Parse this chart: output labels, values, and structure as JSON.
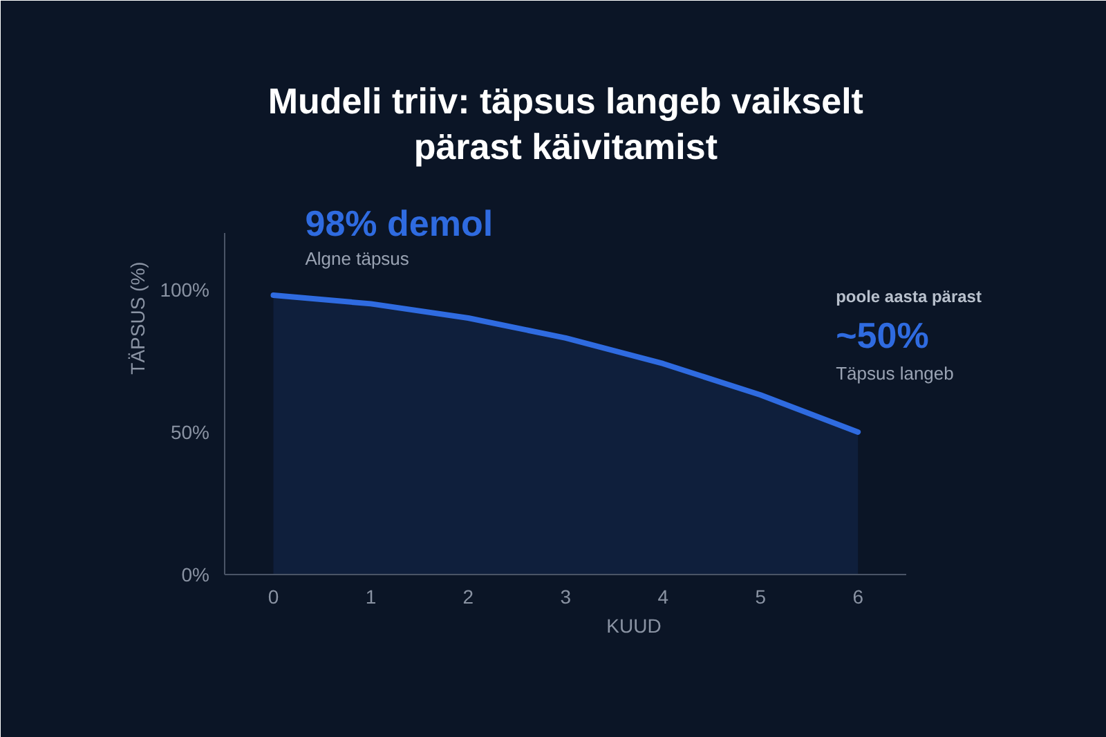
{
  "chart_data": {
    "type": "area",
    "title": "Mudeli triiv: täpsus langeb vaikselt\npärast käivitamist",
    "xlabel": "KUUD",
    "ylabel": "TÄPSUS (%)",
    "x": [
      0,
      1,
      2,
      3,
      4,
      5,
      6
    ],
    "series": [
      {
        "color": "#2f6be0",
        "values": [
          98,
          95,
          90,
          83,
          74,
          63,
          50
        ]
      }
    ],
    "xlim": [
      -0.5,
      6.5
    ],
    "ylim": [
      0,
      120
    ],
    "xticks": [
      0,
      1,
      2,
      3,
      4,
      5,
      6
    ],
    "yticks": [
      {
        "value": 0,
        "label": "0%"
      },
      {
        "value": 50,
        "label": "50%"
      },
      {
        "value": 100,
        "label": "100%"
      }
    ],
    "grid": false,
    "annotations": [
      {
        "text": "98% demol",
        "x": 0,
        "y": 98
      },
      "Algne täpsus",
      "poole aasta pärast",
      {
        "text": "~50%",
        "x": 6,
        "y": 50
      },
      "Täpsus langeb"
    ]
  }
}
